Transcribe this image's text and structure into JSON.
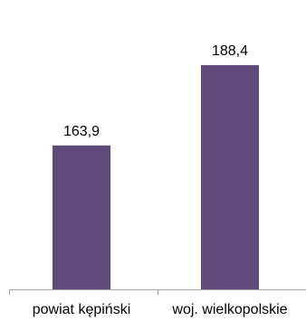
{
  "chart_data": {
    "type": "bar",
    "categories": [
      "powiat kępiński",
      "woj. wielkopolskie"
    ],
    "values": [
      163.9,
      188.4
    ],
    "value_labels": [
      "163,9",
      "188,4"
    ],
    "title": "",
    "xlabel": "",
    "ylabel": "",
    "ylim": [
      120,
      200
    ],
    "grid": false,
    "legend": "none",
    "colors": {
      "bar": "#604a7b",
      "axis": "#a6a6a6",
      "text": "#000000"
    }
  }
}
